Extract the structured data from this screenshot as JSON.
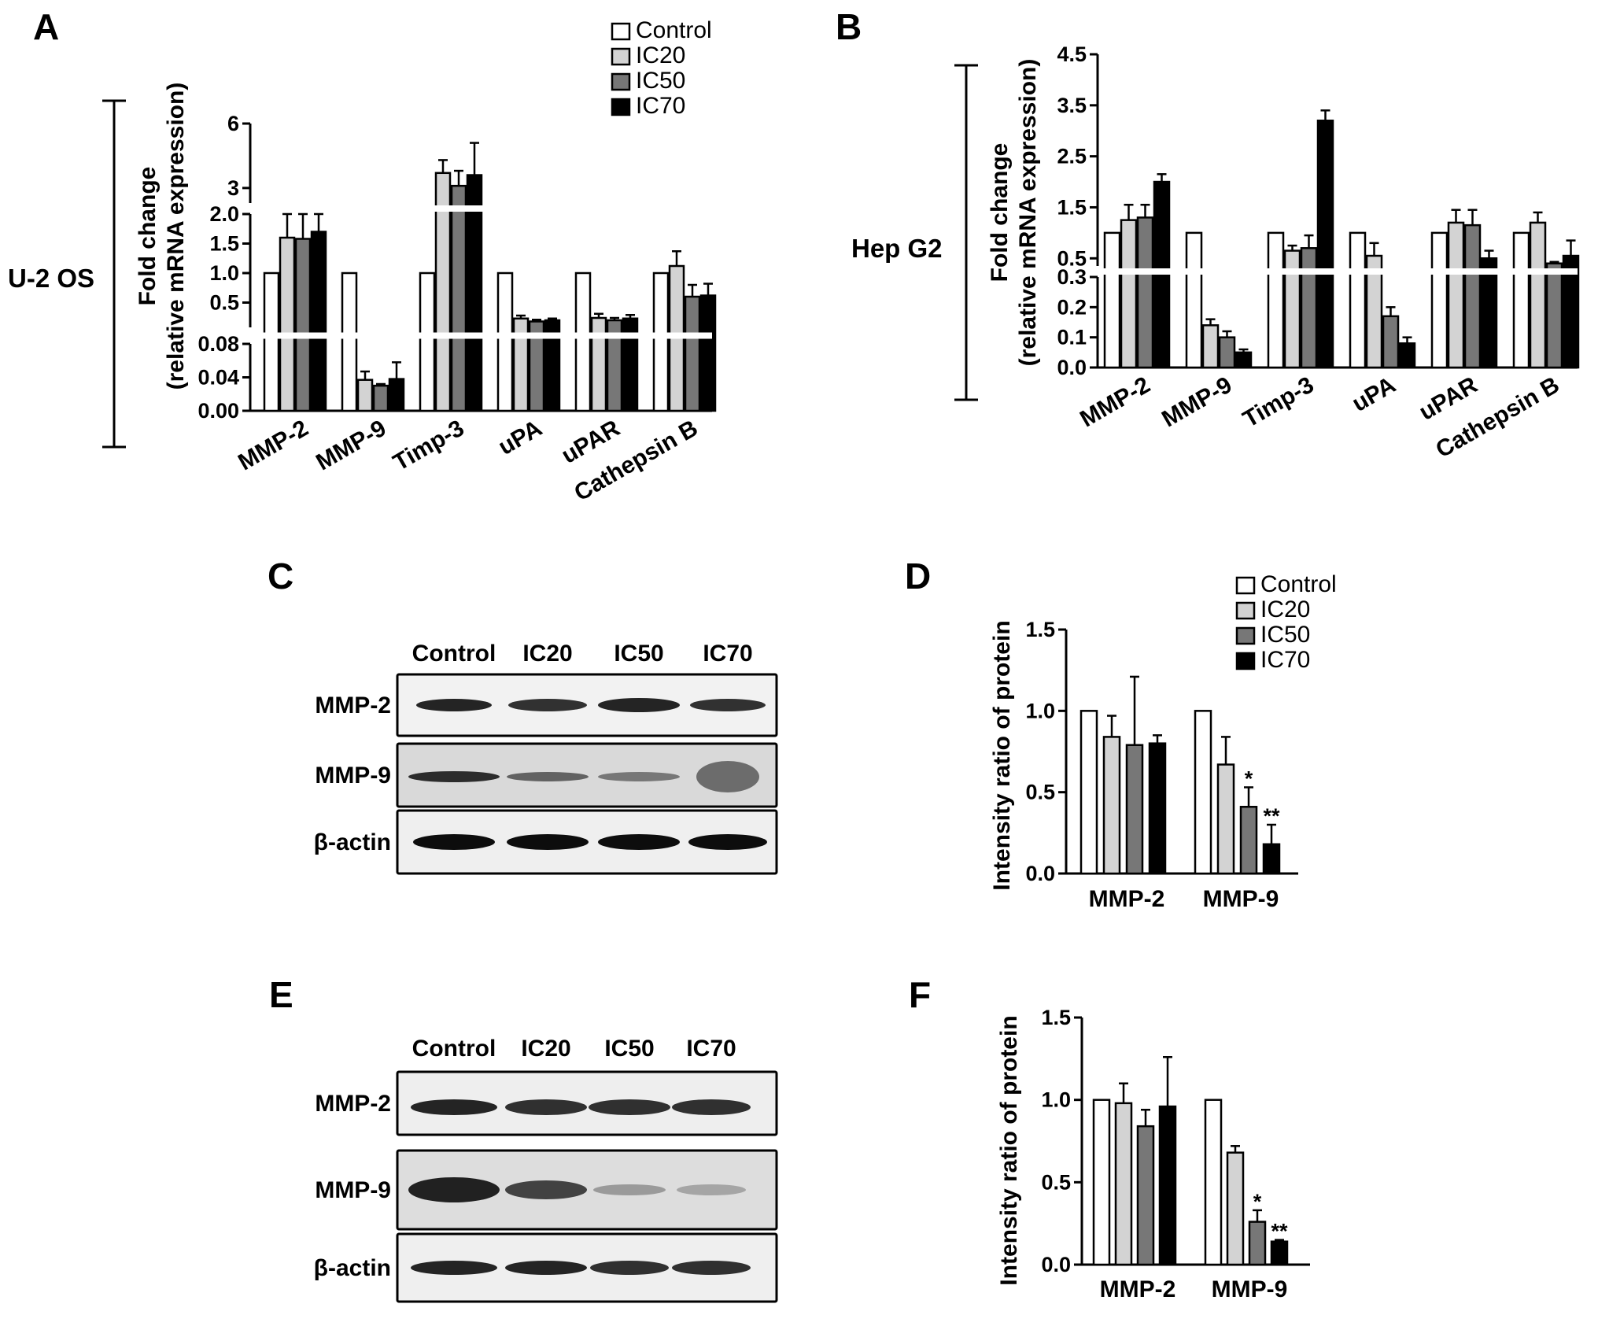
{
  "colors": {
    "Control": "#ffffff",
    "IC20": "#d3d3d3",
    "IC50": "#777777",
    "IC70": "#000000"
  },
  "legend": [
    "Control",
    "IC20",
    "IC50",
    "IC70"
  ],
  "panels": {
    "A": {
      "label": "A",
      "side_label": "U-2 OS"
    },
    "B": {
      "label": "B",
      "side_label": "Hep G2"
    },
    "C": {
      "label": "C",
      "lanes": [
        "Control",
        "IC20",
        "IC50",
        "IC70"
      ],
      "rows": [
        "MMP-2",
        "MMP-9",
        "β-actin"
      ]
    },
    "D": {
      "label": "D"
    },
    "E": {
      "label": "E",
      "lanes": [
        "Control",
        "IC20",
        "IC50",
        "IC70"
      ],
      "rows": [
        "MMP-2",
        "MMP-9",
        "β-actin"
      ]
    },
    "F": {
      "label": "F"
    }
  },
  "chart_data": [
    {
      "panel": "A",
      "type": "bar",
      "ylabel": "Fold change (relative mRNA expression)",
      "categories": [
        "MMP-2",
        "MMP-9",
        "Timp-3",
        "uPA",
        "uPAR",
        "Cathepsin B"
      ],
      "broken_axis_segments": [
        {
          "ylim": [
            0,
            0.08
          ],
          "ticks": [
            "0.00",
            "0.04",
            "0.08"
          ]
        },
        {
          "ylim": [
            0,
            2.0
          ],
          "ticks": [
            "0.5",
            "1.0",
            "1.5",
            "2.0"
          ]
        },
        {
          "ylim": [
            2.3,
            6
          ],
          "ticks": [
            "3",
            "6"
          ]
        }
      ],
      "series": [
        {
          "name": "Control",
          "values": [
            1.0,
            1.0,
            1.0,
            1.0,
            1.0,
            1.0
          ],
          "errors": [
            0,
            0,
            0,
            0,
            0,
            0
          ]
        },
        {
          "name": "IC20",
          "values": [
            1.6,
            0.037,
            3.7,
            0.23,
            0.24,
            1.12
          ],
          "errors": [
            0.4,
            0.01,
            0.6,
            0.05,
            0.07,
            0.25
          ]
        },
        {
          "name": "IC50",
          "values": [
            1.58,
            0.03,
            3.1,
            0.18,
            0.2,
            0.6
          ],
          "errors": [
            0.42,
            0.002,
            0.7,
            0.03,
            0.04,
            0.2
          ]
        },
        {
          "name": "IC70",
          "values": [
            1.7,
            0.038,
            3.6,
            0.2,
            0.23,
            0.62
          ],
          "errors": [
            0.55,
            0.02,
            1.5,
            0.03,
            0.06,
            0.2
          ]
        }
      ]
    },
    {
      "panel": "B",
      "type": "bar",
      "ylabel": "Fold change (relative mRNA expression)",
      "categories": [
        "MMP-2",
        "MMP-9",
        "Timp-3",
        "uPA",
        "uPAR",
        "Cathepsin B"
      ],
      "broken_axis_segments": [
        {
          "ylim": [
            0,
            0.3
          ],
          "ticks": [
            "0.0",
            "0.1",
            "0.2",
            "0.3"
          ]
        },
        {
          "ylim": [
            0.35,
            4.5
          ],
          "ticks": [
            "0.5",
            "1.5",
            "2.5",
            "3.5",
            "4.5"
          ]
        }
      ],
      "series": [
        {
          "name": "Control",
          "values": [
            1.0,
            1.0,
            1.0,
            1.0,
            1.0,
            1.0
          ],
          "errors": [
            0,
            0,
            0,
            0,
            0,
            0
          ]
        },
        {
          "name": "IC20",
          "values": [
            1.25,
            0.14,
            0.65,
            0.55,
            1.2,
            1.2
          ],
          "errors": [
            0.3,
            0.02,
            0.1,
            0.25,
            0.25,
            0.2
          ]
        },
        {
          "name": "IC50",
          "values": [
            1.3,
            0.1,
            0.7,
            0.17,
            1.15,
            0.4
          ],
          "errors": [
            0.25,
            0.02,
            0.25,
            0.03,
            0.3,
            0.03
          ]
        },
        {
          "name": "IC70",
          "values": [
            2.0,
            0.05,
            3.2,
            0.08,
            0.5,
            0.55
          ],
          "errors": [
            0.15,
            0.01,
            0.2,
            0.02,
            0.15,
            0.3
          ]
        }
      ]
    },
    {
      "panel": "D",
      "type": "bar",
      "ylabel": "Intensity ratio of protein",
      "categories": [
        "MMP-2",
        "MMP-9"
      ],
      "yticks": [
        "0.0",
        "0.5",
        "1.0",
        "1.5"
      ],
      "ylim": [
        0,
        1.5
      ],
      "series": [
        {
          "name": "Control",
          "values": [
            1.0,
            1.0
          ],
          "errors": [
            0,
            0
          ]
        },
        {
          "name": "IC20",
          "values": [
            0.84,
            0.67
          ],
          "errors": [
            0.13,
            0.17
          ]
        },
        {
          "name": "IC50",
          "values": [
            0.79,
            0.41
          ],
          "errors": [
            0.42,
            0.12
          ]
        },
        {
          "name": "IC70",
          "values": [
            0.8,
            0.18
          ],
          "errors": [
            0.05,
            0.12
          ]
        }
      ],
      "annotations": [
        {
          "category": "MMP-9",
          "series": "IC50",
          "text": "*"
        },
        {
          "category": "MMP-9",
          "series": "IC70",
          "text": "**"
        }
      ]
    },
    {
      "panel": "F",
      "type": "bar",
      "ylabel": "Intensity ratio of protein",
      "categories": [
        "MMP-2",
        "MMP-9"
      ],
      "yticks": [
        "0.0",
        "0.5",
        "1.0",
        "1.5"
      ],
      "ylim": [
        0,
        1.5
      ],
      "series": [
        {
          "name": "Control",
          "values": [
            1.0,
            1.0
          ],
          "errors": [
            0,
            0
          ]
        },
        {
          "name": "IC20",
          "values": [
            0.98,
            0.68
          ],
          "errors": [
            0.12,
            0.04
          ]
        },
        {
          "name": "IC50",
          "values": [
            0.84,
            0.26
          ],
          "errors": [
            0.1,
            0.07
          ]
        },
        {
          "name": "IC70",
          "values": [
            0.96,
            0.14
          ],
          "errors": [
            0.3,
            0.01
          ]
        }
      ],
      "annotations": [
        {
          "category": "MMP-9",
          "series": "IC50",
          "text": "*"
        },
        {
          "category": "MMP-9",
          "series": "IC70",
          "text": "**"
        }
      ]
    }
  ]
}
